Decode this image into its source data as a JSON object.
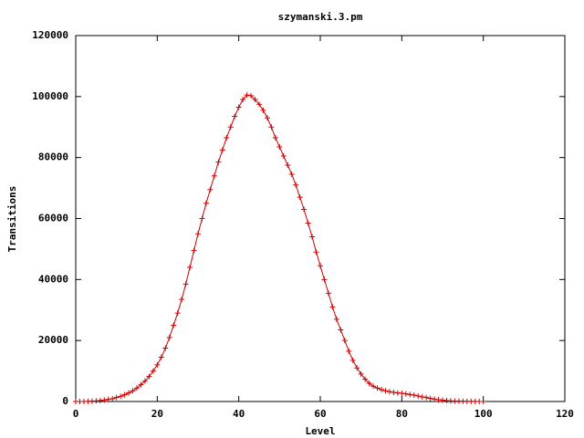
{
  "chart_data": {
    "type": "line",
    "title": "szymanski.3.pm",
    "x_label": "Level",
    "y_label": "Transitions",
    "x": [
      0,
      1,
      2,
      3,
      4,
      5,
      6,
      7,
      8,
      9,
      10,
      11,
      12,
      13,
      14,
      15,
      16,
      17,
      18,
      19,
      20,
      21,
      22,
      23,
      24,
      25,
      26,
      27,
      28,
      29,
      30,
      31,
      32,
      33,
      34,
      35,
      36,
      37,
      38,
      39,
      40,
      41,
      42,
      43,
      44,
      45,
      46,
      47,
      48,
      49,
      50,
      51,
      52,
      53,
      54,
      55,
      56,
      57,
      58,
      59,
      60,
      61,
      62,
      63,
      64,
      65,
      66,
      67,
      68,
      69,
      70,
      71,
      72,
      73,
      74,
      75,
      76,
      77,
      78,
      79,
      80,
      81,
      82,
      83,
      84,
      85,
      86,
      87,
      88,
      89,
      90,
      91,
      92,
      93,
      94,
      95,
      96,
      97,
      98,
      99,
      100
    ],
    "series": [
      {
        "name": "Transitions",
        "color": "#cc0000",
        "marker": "+",
        "values": [
          0,
          0,
          0,
          50,
          100,
          200,
          300,
          500,
          700,
          900,
          1300,
          1700,
          2200,
          2800,
          3500,
          4400,
          5500,
          6700,
          8200,
          10000,
          12000,
          14500,
          17500,
          21000,
          25000,
          29000,
          33500,
          38500,
          44000,
          49500,
          55000,
          60000,
          65000,
          69500,
          74000,
          78500,
          82500,
          86500,
          90000,
          93500,
          96500,
          99000,
          100500,
          100300,
          99000,
          97500,
          95500,
          93000,
          90000,
          86500,
          83500,
          80500,
          77500,
          74500,
          71000,
          67000,
          63000,
          58500,
          54000,
          49000,
          44500,
          40000,
          35500,
          31000,
          27000,
          23500,
          20000,
          16500,
          13500,
          11000,
          9000,
          7300,
          6000,
          5000,
          4400,
          3900,
          3500,
          3200,
          3000,
          2800,
          2700,
          2500,
          2300,
          2100,
          1800,
          1500,
          1300,
          1000,
          800,
          600,
          450,
          300,
          200,
          150,
          100,
          70,
          50,
          30,
          20,
          10,
          0
        ]
      }
    ],
    "xlim": [
      0,
      120
    ],
    "xticks": [
      0,
      20,
      40,
      60,
      80,
      100,
      120
    ],
    "ylim": [
      0,
      120000
    ],
    "yticks": [
      0,
      20000,
      40000,
      60000,
      80000,
      100000,
      120000
    ]
  }
}
